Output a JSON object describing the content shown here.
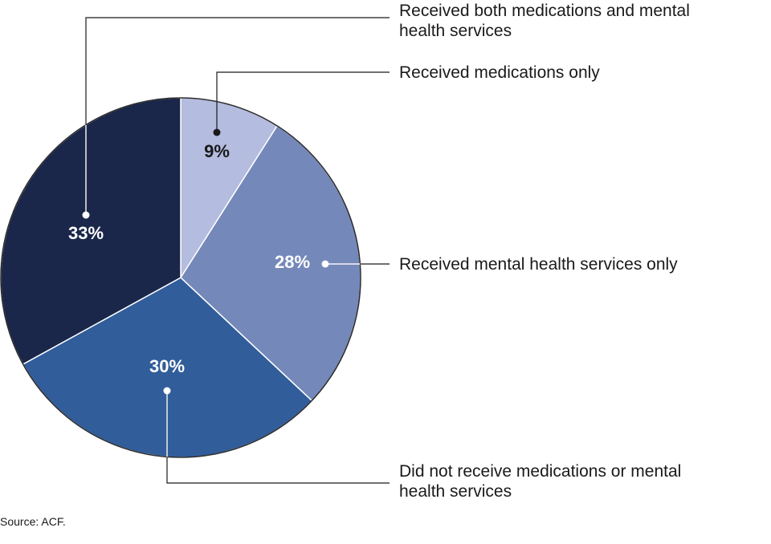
{
  "chart_data": {
    "type": "pie",
    "slices": [
      {
        "label_lines": [
          "Received medications only"
        ],
        "value": 9,
        "value_label": "9%",
        "color": "#b4bcdf",
        "label_color": "#1a1a1a"
      },
      {
        "label_lines": [
          "Received mental health services only"
        ],
        "value": 28,
        "value_label": "28%",
        "color": "#7588ba",
        "label_color": "#ffffff"
      },
      {
        "label_lines": [
          "Did not receive medications or mental",
          "health services"
        ],
        "value": 30,
        "value_label": "30%",
        "color": "#315d9a",
        "label_color": "#ffffff"
      },
      {
        "label_lines": [
          "Received both medications and mental",
          "health services"
        ],
        "value": 33,
        "value_label": "33%",
        "color": "#1a274a",
        "label_color": "#ffffff"
      }
    ],
    "start_angle": "top (12 o'clock)",
    "direction": "clockwise",
    "source": "Source: ACF."
  }
}
